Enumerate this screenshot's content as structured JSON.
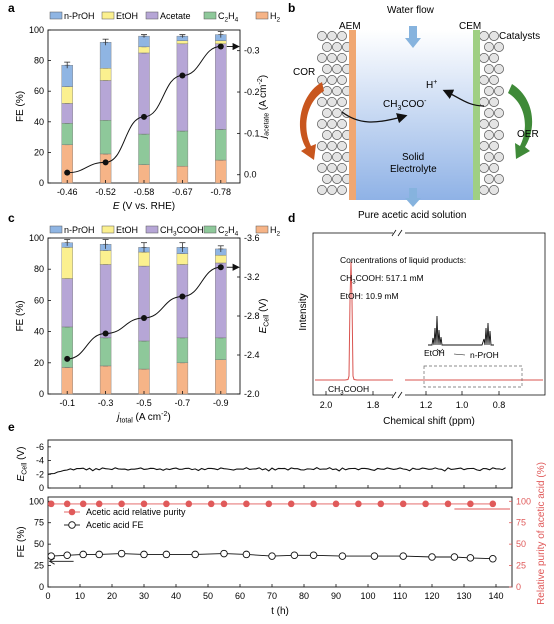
{
  "colors": {
    "npropoh": "#8fb5e3",
    "etoh": "#fbf08f",
    "acetate": "#b6a6d6",
    "c2h4": "#8ec89a",
    "h2": "#f6b487",
    "cor_arrow": "#c8561e",
    "oer_arrow": "#3f8a38",
    "aem": "#f0a772",
    "cem": "#9fcf83",
    "electrolyte_top": "#ffffff",
    "electrolyte_bottom": "#8fb2e6",
    "water_arrow": "#86b3de",
    "nmr_peak": "#d9534f",
    "purity": "#e05a5a"
  },
  "panel_labels": [
    "a",
    "b",
    "c",
    "d",
    "e"
  ],
  "chart_data": [
    {
      "id": "a",
      "type": "bar",
      "stacked": true,
      "categories": [
        "-0.46",
        "-0.52",
        "-0.58",
        "-0.67",
        "-0.78"
      ],
      "xlabel_italic": "E",
      "xlabel_rest": " (V vs. RHE)",
      "ylabel": "FE (%)",
      "ylim": [
        0,
        100
      ],
      "yticks": [
        "0",
        "20",
        "40",
        "60",
        "80",
        "100"
      ],
      "y2label_italic": "j",
      "y2label_sub": "acetate",
      "y2label_rest": " (A cm",
      "y2label_sup": "-2",
      "y2label_end": ")",
      "y2lim": [
        0.02,
        -0.35
      ],
      "y2ticks": [
        "0.0",
        "-0.1",
        "-0.2",
        "-0.3"
      ],
      "legend": [
        {
          "key": "npropoh",
          "label": "n-PrOH"
        },
        {
          "key": "etoh",
          "label": "EtOH"
        },
        {
          "key": "acetate",
          "label": "Acetate"
        },
        {
          "key": "c2h4",
          "label": "C2H4",
          "base": "C",
          "sub1": "2",
          "mid": "H",
          "sub2": "4"
        },
        {
          "key": "h2",
          "label": "H2",
          "base": "H",
          "sub1": "2"
        }
      ],
      "series": [
        {
          "name": "H2",
          "key": "h2",
          "values": [
            25,
            19,
            12,
            11,
            15
          ]
        },
        {
          "name": "C2H4",
          "key": "c2h4",
          "values": [
            14,
            22,
            20,
            23,
            20
          ]
        },
        {
          "name": "Acetate",
          "key": "acetate",
          "values": [
            13,
            26,
            53,
            57,
            56
          ]
        },
        {
          "name": "EtOH",
          "key": "etoh",
          "values": [
            11,
            8,
            4,
            2,
            2
          ]
        },
        {
          "name": "n-PrOH",
          "key": "npropoh",
          "values": [
            14,
            17,
            7,
            3,
            4
          ]
        }
      ],
      "errors": [
        2,
        2,
        1,
        1,
        2
      ],
      "line": {
        "values": [
          -0.005,
          -0.03,
          -0.14,
          -0.24,
          -0.31
        ]
      }
    },
    {
      "id": "c",
      "type": "bar",
      "stacked": true,
      "categories": [
        "-0.1",
        "-0.3",
        "-0.5",
        "-0.7",
        "-0.9"
      ],
      "xlabel_italic": "j",
      "xlabel_sub": "total",
      "xlabel_rest": " (A cm",
      "xlabel_sup": "-2",
      "xlabel_end": ")",
      "ylabel": "FE (%)",
      "ylim": [
        0,
        100
      ],
      "yticks": [
        "0",
        "20",
        "40",
        "60",
        "80",
        "100"
      ],
      "y2label_italic": "E",
      "y2label_sub": "Cell",
      "y2label_rest": " (V)",
      "y2lim": [
        -2.0,
        -3.6
      ],
      "y2ticks": [
        "-2.0",
        "-2.4",
        "-2.8",
        "-3.2",
        "-3.6"
      ],
      "legend": [
        {
          "key": "npropoh",
          "label": "n-PrOH"
        },
        {
          "key": "etoh",
          "label": "EtOH"
        },
        {
          "key": "acetate",
          "label": "CH3COOH",
          "base": "CH",
          "sub1": "3",
          "mid": "COOH"
        },
        {
          "key": "c2h4",
          "label": "C2H4",
          "base": "C",
          "sub1": "2",
          "mid": "H",
          "sub2": "4"
        },
        {
          "key": "h2",
          "label": "H2",
          "base": "H",
          "sub1": "2"
        }
      ],
      "series": [
        {
          "name": "H2",
          "key": "h2",
          "values": [
            17,
            18,
            16,
            20,
            22
          ]
        },
        {
          "name": "C2H4",
          "key": "c2h4",
          "values": [
            26,
            18,
            18,
            16,
            14
          ]
        },
        {
          "name": "CH3COOH",
          "key": "acetate",
          "values": [
            31,
            47,
            48,
            47,
            48
          ]
        },
        {
          "name": "EtOH",
          "key": "etoh",
          "values": [
            20,
            9,
            9,
            7,
            5
          ]
        },
        {
          "name": "n-PrOH",
          "key": "npropoh",
          "values": [
            3,
            4,
            3,
            4,
            4
          ]
        }
      ],
      "errors": [
        2,
        3,
        3,
        3,
        2
      ],
      "line": {
        "values": [
          -2.36,
          -2.62,
          -2.78,
          -3.0,
          -3.3
        ]
      }
    },
    {
      "id": "d",
      "type": "line",
      "xlabel": "Chemical shift (ppm)",
      "ylabel": "Intensity",
      "xticks": [
        "2.0",
        "1.8",
        "1.2",
        "1.0",
        "0.8"
      ],
      "peak_label": "CH3COOH",
      "peak_label_base": "CH",
      "peak_label_sub": "3",
      "peak_label_rest": "COOH",
      "annotations": {
        "title": "Concentrations of liquid products:",
        "acetic_base": "CH",
        "acetic_sub": "3",
        "acetic_rest": "COOH: 517.1 mM",
        "etoh": "EtOH: 10.9 mM",
        "etoh_label": "EtOH",
        "npropoh_label": "n-PrOH"
      }
    },
    {
      "id": "e",
      "type": "line",
      "xlabel": "t (h)",
      "xlim": [
        0,
        145
      ],
      "xticks": [
        "0",
        "10",
        "20",
        "30",
        "40",
        "50",
        "60",
        "70",
        "80",
        "90",
        "100",
        "110",
        "120",
        "130",
        "140"
      ],
      "top": {
        "ylabel_italic": "E",
        "ylabel_sub": "Cell",
        "ylabel_rest": " (V)",
        "yticks": [
          "-6",
          "-4",
          "-2",
          "0"
        ],
        "ylim": [
          0,
          -7
        ],
        "value": -2.8
      },
      "bottom": {
        "ylabel": "FE (%)",
        "y2label": "Relative purity of acetic acid (%)",
        "yticks": [
          "0",
          "25",
          "50",
          "75",
          "100"
        ],
        "ylim": [
          0,
          105
        ],
        "purity": {
          "name": "Acetic acid relative purity",
          "x": [
            1,
            6,
            11,
            16,
            23,
            30,
            37,
            44,
            51,
            55,
            62,
            69,
            76,
            83,
            90,
            97,
            104,
            111,
            118,
            125,
            132,
            139
          ],
          "values": [
            97,
            97,
            97,
            97,
            97,
            97,
            97,
            97,
            97,
            97,
            97,
            97,
            97,
            97,
            97,
            97,
            97,
            97,
            97,
            97,
            97,
            97
          ]
        },
        "fe": {
          "name": "Acetic acid FE",
          "x": [
            1,
            6,
            11,
            16,
            23,
            30,
            37,
            46,
            55,
            62,
            70,
            77,
            83,
            92,
            102,
            111,
            120,
            127,
            132,
            139
          ],
          "values": [
            36,
            37,
            38,
            38,
            39,
            38,
            38,
            38,
            39,
            38,
            36,
            37,
            37,
            36,
            36,
            36,
            35,
            35,
            34,
            33
          ]
        }
      }
    }
  ],
  "diagram": {
    "water_flow": "Water flow",
    "aem": "AEM",
    "cem": "CEM",
    "catalysts": "Catalysts",
    "cor": "COR",
    "oer": "OER",
    "proton_base": "H",
    "proton_sup": "+",
    "acetate_base": "CH",
    "acetate_sub": "3",
    "acetate_rest": "COO",
    "acetate_sup": "-",
    "solid": "Solid",
    "electrolyte": "Electrolyte",
    "output": "Pure acetic acid solution"
  }
}
